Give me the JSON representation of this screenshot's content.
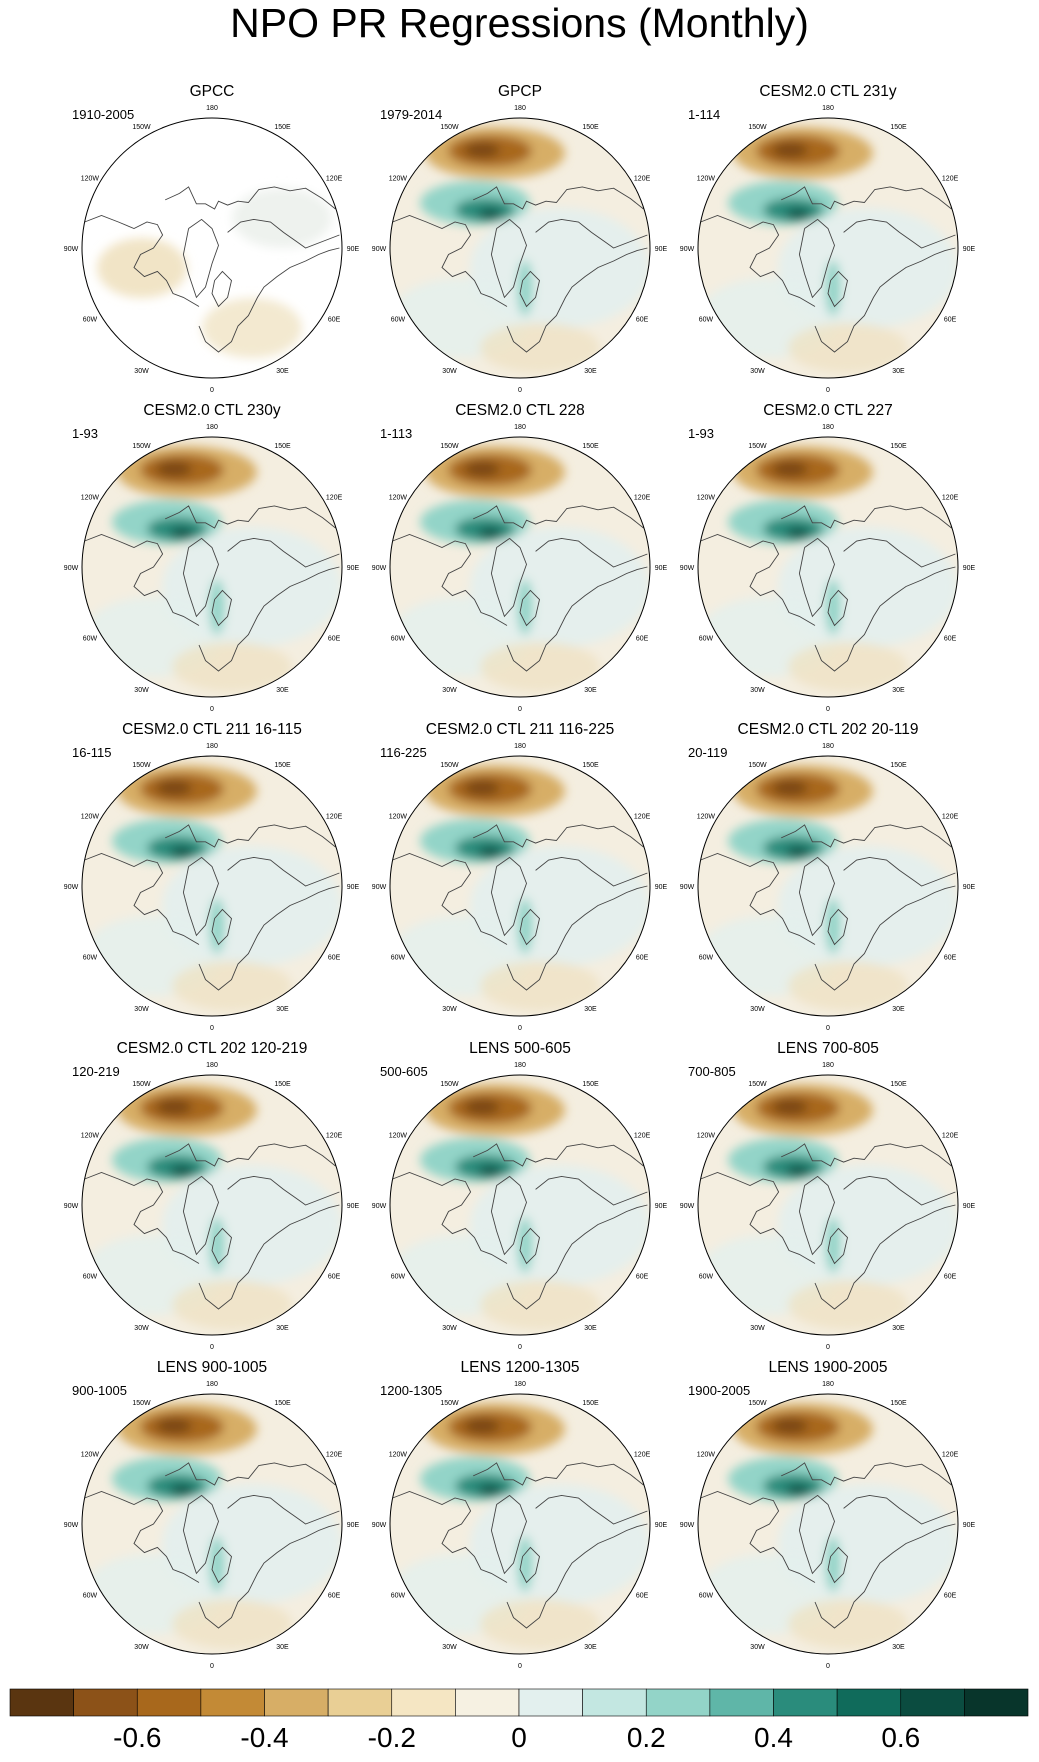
{
  "title": "NPO PR Regressions (Monthly)",
  "lon_labels": [
    "180",
    "150E",
    "120E",
    "90E",
    "60E",
    "30E",
    "0",
    "30W",
    "60W",
    "90W",
    "120W",
    "150W"
  ],
  "panels": [
    {
      "title": "GPCC",
      "period": "1910-2005",
      "coverage": "land"
    },
    {
      "title": "GPCP",
      "period": "1979-2014",
      "coverage": "full"
    },
    {
      "title": "CESM2.0 CTL 231y",
      "period": "1-114",
      "coverage": "full"
    },
    {
      "title": "CESM2.0 CTL 230y",
      "period": "1-93",
      "coverage": "full"
    },
    {
      "title": "CESM2.0 CTL 228",
      "period": "1-113",
      "coverage": "full"
    },
    {
      "title": "CESM2.0 CTL 227",
      "period": "1-93",
      "coverage": "full"
    },
    {
      "title": "CESM2.0 CTL 211 16-115",
      "period": "16-115",
      "coverage": "full"
    },
    {
      "title": "CESM2.0 CTL 211 116-225",
      "period": "116-225",
      "coverage": "full"
    },
    {
      "title": "CESM2.0 CTL 202 20-119",
      "period": "20-119",
      "coverage": "full"
    },
    {
      "title": "CESM2.0 CTL 202 120-219",
      "period": "120-219",
      "coverage": "full"
    },
    {
      "title": "LENS 500-605",
      "period": "500-605",
      "coverage": "full"
    },
    {
      "title": "LENS 700-805",
      "period": "700-805",
      "coverage": "full"
    },
    {
      "title": "LENS 900-1005",
      "period": "900-1005",
      "coverage": "full"
    },
    {
      "title": "LENS 1200-1305",
      "period": "1200-1305",
      "coverage": "full"
    },
    {
      "title": "LENS 1900-2005",
      "period": "1900-2005",
      "coverage": "full"
    }
  ],
  "chart_data": {
    "type": "heatmap",
    "title": "NPO PR Regressions (Monthly)",
    "projection": "north polar stereographic",
    "colorbar": {
      "orientation": "horizontal",
      "tick_labels": [
        "-0.6",
        "-0.4",
        "-0.2",
        "0",
        "0.2",
        "0.4",
        "0.6"
      ],
      "tick_values": [
        -0.6,
        -0.4,
        -0.2,
        0,
        0.2,
        0.4,
        0.6
      ],
      "colors": [
        "#5a3510",
        "#8c5218",
        "#a8681c",
        "#c38a36",
        "#d7ae66",
        "#e9cf95",
        "#f5e6c3",
        "#f6f1e2",
        "#e3f0ee",
        "#c3e7e1",
        "#93d4c8",
        "#5fb6a8",
        "#2a8c7c",
        "#106b5b",
        "#0b4c40",
        "#08352b"
      ]
    },
    "features": {
      "brown_maximum": "North Pacific (~150W-180, mid-latitudes)",
      "teal_maximum": "Gulf of Alaska / west coast of North America (~120W-150W)"
    }
  }
}
